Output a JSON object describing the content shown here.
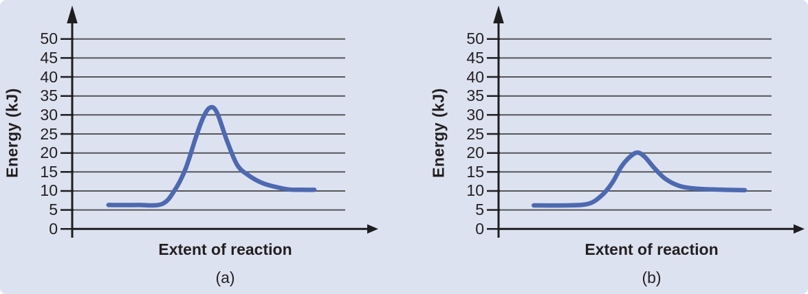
{
  "figure": {
    "background_color": "#dde2f0",
    "gridline_color": "#55565a",
    "axis_color": "#1e1e21",
    "text_color": "#231f20"
  },
  "chart_data": [
    {
      "id": "a",
      "type": "line",
      "caption": "(a)",
      "xlabel": "Extent of reaction",
      "ylabel": "Energy (kJ)",
      "ylim": [
        0,
        55
      ],
      "yticks": [
        50,
        45,
        40,
        35,
        30,
        25,
        20,
        15,
        10,
        5,
        0
      ],
      "grid": "horizontal",
      "legend": "none",
      "line_color": "#4d69b0",
      "series": [
        {
          "name": "energy-profile-a",
          "reactant_energy_kJ": 6,
          "peak_energy_kJ": 32,
          "product_energy_kJ": 10,
          "points": [
            [
              0.133,
              6.3
            ],
            [
              0.24,
              6.3
            ],
            [
              0.33,
              6.6
            ],
            [
              0.378,
              10.5
            ],
            [
              0.416,
              16.0
            ],
            [
              0.453,
              24.1
            ],
            [
              0.479,
              29.2
            ],
            [
              0.504,
              31.9
            ],
            [
              0.529,
              30.8
            ],
            [
              0.567,
              23.2
            ],
            [
              0.604,
              16.9
            ],
            [
              0.642,
              14.3
            ],
            [
              0.693,
              12.2
            ],
            [
              0.743,
              11.1
            ],
            [
              0.793,
              10.4
            ],
            [
              0.844,
              10.3
            ],
            [
              0.887,
              10.3
            ]
          ]
        }
      ]
    },
    {
      "id": "b",
      "type": "line",
      "caption": "(b)",
      "xlabel": "Extent of reaction",
      "ylabel": "Energy (kJ)",
      "ylim": [
        0,
        55
      ],
      "yticks": [
        50,
        45,
        40,
        35,
        30,
        25,
        20,
        15,
        10,
        5,
        0
      ],
      "grid": "horizontal",
      "legend": "none",
      "line_color": "#4d69b0",
      "series": [
        {
          "name": "energy-profile-b",
          "reactant_energy_kJ": 6,
          "peak_energy_kJ": 20,
          "product_energy_kJ": 10,
          "points": [
            [
              0.129,
              6.2
            ],
            [
              0.24,
              6.2
            ],
            [
              0.328,
              6.6
            ],
            [
              0.379,
              8.9
            ],
            [
              0.417,
              12.2
            ],
            [
              0.449,
              16.3
            ],
            [
              0.48,
              18.9
            ],
            [
              0.508,
              20.1
            ],
            [
              0.535,
              19.0
            ],
            [
              0.571,
              16.0
            ],
            [
              0.609,
              13.3
            ],
            [
              0.659,
              11.4
            ],
            [
              0.71,
              10.7
            ],
            [
              0.783,
              10.4
            ],
            [
              0.902,
              10.2
            ]
          ]
        }
      ]
    }
  ]
}
